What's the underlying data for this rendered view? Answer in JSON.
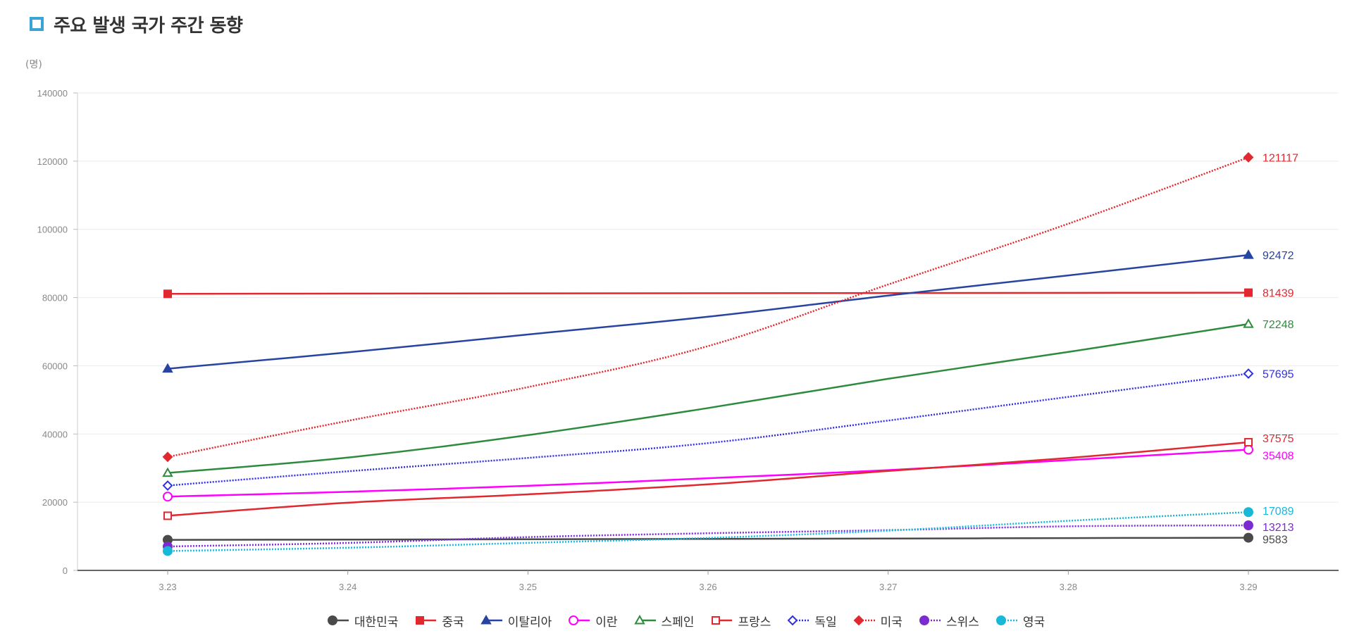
{
  "header": {
    "title": "주요 발생 국가 주간 동향",
    "accent_color": "#3aa3d8",
    "icon": "square-outline-icon"
  },
  "chart_data": {
    "type": "line",
    "unit_label": "(명)",
    "categories": [
      "3.23",
      "3.24",
      "3.25",
      "3.26",
      "3.27",
      "3.28",
      "3.29"
    ],
    "ylim": [
      0,
      140000
    ],
    "yticks": [
      "0",
      "20000",
      "40000",
      "60000",
      "80000",
      "100000",
      "120000",
      "140000"
    ],
    "grid": true,
    "legend_position": "bottom",
    "series": [
      {
        "name": "대한민국",
        "color": "#4a4a4a",
        "marker": "circle-filled",
        "dash": "solid",
        "values": [
          8961,
          9037,
          9137,
          9241,
          9332,
          9478,
          9583
        ],
        "end_label": "9583"
      },
      {
        "name": "중국",
        "color": "#e0282e",
        "marker": "square-filled",
        "dash": "solid",
        "values": [
          81093,
          81171,
          81218,
          81285,
          81340,
          81394,
          81439
        ],
        "end_label": "81439"
      },
      {
        "name": "이탈리아",
        "color": "#2744a0",
        "marker": "triangle-filled",
        "dash": "solid",
        "values": [
          59138,
          63927,
          69176,
          74386,
          80589,
          86498,
          92472
        ],
        "end_label": "92472"
      },
      {
        "name": "이란",
        "color": "#ff00ff",
        "marker": "circle-hollow",
        "dash": "solid",
        "values": [
          21638,
          23049,
          24811,
          27017,
          29406,
          32332,
          35408
        ],
        "end_label": "35408"
      },
      {
        "name": "스페인",
        "color": "#2e8b3e",
        "marker": "triangle-hollow",
        "dash": "solid",
        "values": [
          28572,
          33089,
          39673,
          47610,
          56188,
          64059,
          72248
        ],
        "end_label": "72248"
      },
      {
        "name": "프랑스",
        "color": "#e0282e",
        "marker": "square-hollow",
        "dash": "solid",
        "values": [
          16018,
          19856,
          22302,
          25233,
          29155,
          32964,
          37575
        ],
        "end_label": "37575"
      },
      {
        "name": "독일",
        "color": "#3030e0",
        "marker": "diamond-hollow",
        "dash": "dotted",
        "values": [
          24873,
          29056,
          32986,
          37323,
          43938,
          50871,
          57695
        ],
        "end_label": "57695"
      },
      {
        "name": "미국",
        "color": "#e0282e",
        "marker": "diamond-filled",
        "dash": "dotted",
        "values": [
          33276,
          43847,
          53740,
          65778,
          83836,
          101657,
          121117
        ],
        "end_label": "121117"
      },
      {
        "name": "스위스",
        "color": "#7b2bd0",
        "marker": "circle-filled",
        "dash": "dotted",
        "values": [
          7014,
          8060,
          9765,
          10897,
          11811,
          12928,
          13213
        ],
        "end_label": "13213"
      },
      {
        "name": "영국",
        "color": "#1ab8d8",
        "marker": "circle-filled",
        "dash": "dotted",
        "values": [
          5683,
          6650,
          8077,
          9529,
          11658,
          14543,
          17089
        ],
        "end_label": "17089"
      }
    ]
  }
}
